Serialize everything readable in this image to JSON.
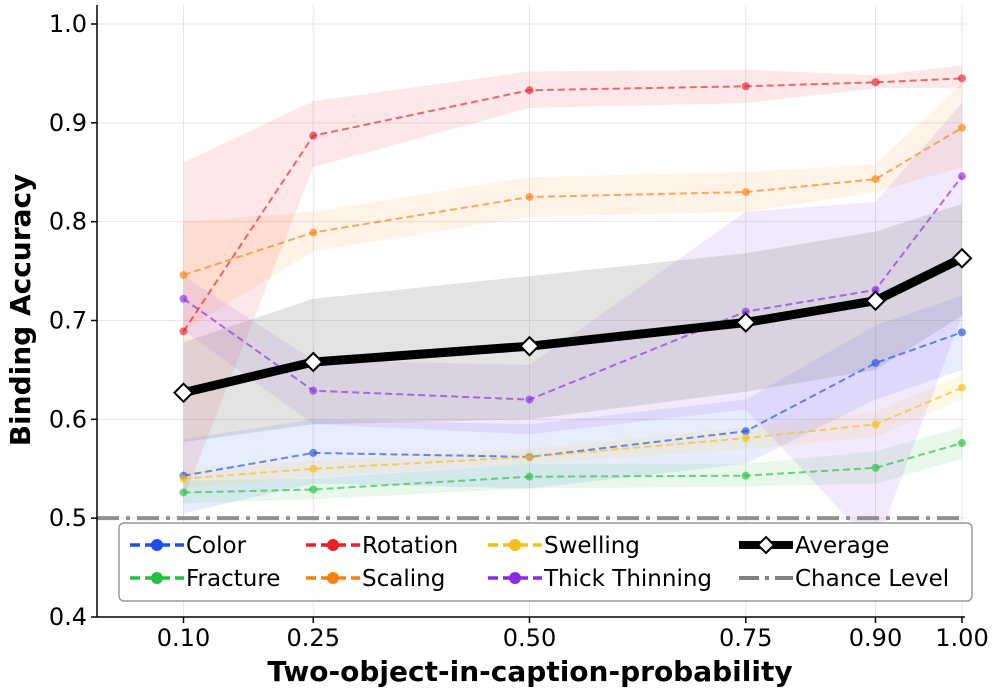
{
  "chart_data": {
    "type": "line",
    "xlabel": "Two-object-in-caption-probability",
    "ylabel": "Binding Accuracy",
    "x": [
      0.1,
      0.25,
      0.5,
      0.75,
      0.9,
      1.0
    ],
    "xtick_labels": [
      "0.10",
      "0.25",
      "0.50",
      "0.75",
      "0.90",
      "1.00"
    ],
    "ylim": [
      0.4,
      1.02
    ],
    "yticks": [
      0.4,
      0.5,
      0.6,
      0.7,
      0.8,
      0.9,
      1.0
    ],
    "ytick_labels": [
      "0.4",
      "0.5",
      "0.6",
      "0.7",
      "0.8",
      "0.9",
      "1.0"
    ],
    "grid": true,
    "legend_position": "bottom",
    "series": [
      {
        "name": "Color",
        "color": "#1f4fe8",
        "style": "dashed",
        "values": [
          0.543,
          0.566,
          0.562,
          0.588,
          0.657,
          0.688
        ],
        "lower": [
          0.505,
          0.535,
          0.53,
          0.555,
          0.62,
          0.65
        ],
        "upper": [
          0.58,
          0.6,
          0.595,
          0.62,
          0.695,
          0.725
        ]
      },
      {
        "name": "Fracture",
        "color": "#22c040",
        "style": "dashed",
        "values": [
          0.526,
          0.529,
          0.542,
          0.543,
          0.551,
          0.576
        ],
        "lower": [
          0.515,
          0.519,
          0.53,
          0.532,
          0.535,
          0.56
        ],
        "upper": [
          0.538,
          0.54,
          0.555,
          0.555,
          0.568,
          0.592
        ]
      },
      {
        "name": "Rotation",
        "color": "#e8202a",
        "style": "dashed",
        "values": [
          0.689,
          0.887,
          0.933,
          0.937,
          0.941,
          0.945
        ],
        "lower": [
          0.52,
          0.855,
          0.915,
          0.92,
          0.935,
          0.935
        ],
        "upper": [
          0.86,
          0.922,
          0.952,
          0.954,
          0.948,
          0.958
        ]
      },
      {
        "name": "Scaling",
        "color": "#ff7f0e",
        "style": "dashed",
        "values": [
          0.746,
          0.789,
          0.825,
          0.83,
          0.843,
          0.895
        ],
        "lower": [
          0.69,
          0.77,
          0.805,
          0.81,
          0.83,
          0.855
        ],
        "upper": [
          0.8,
          0.81,
          0.845,
          0.85,
          0.858,
          0.94
        ]
      },
      {
        "name": "Swelling",
        "color": "#f5c016",
        "style": "dashed",
        "values": [
          0.54,
          0.55,
          0.562,
          0.581,
          0.595,
          0.632
        ],
        "lower": [
          0.53,
          0.542,
          0.555,
          0.57,
          0.582,
          0.62
        ],
        "upper": [
          0.55,
          0.558,
          0.57,
          0.592,
          0.608,
          0.645
        ]
      },
      {
        "name": "Thick Thinning",
        "color": "#8a2be2",
        "style": "dashed",
        "values": [
          0.722,
          0.629,
          0.62,
          0.709,
          0.731,
          0.846
        ],
        "lower": [
          0.69,
          0.595,
          0.585,
          0.61,
          0.47,
          0.705
        ],
        "upper": [
          0.745,
          0.66,
          0.655,
          0.81,
          0.82,
          0.92
        ]
      },
      {
        "name": "Average",
        "color": "#000000",
        "style": "solid",
        "values": [
          0.627,
          0.658,
          0.674,
          0.698,
          0.72,
          0.763
        ],
        "lower": [
          0.577,
          0.595,
          0.6,
          0.628,
          0.65,
          0.705
        ],
        "upper": [
          0.678,
          0.722,
          0.745,
          0.768,
          0.79,
          0.818
        ]
      }
    ],
    "chance_level": {
      "name": "Chance Level",
      "value": 0.5,
      "color": "#808080"
    }
  }
}
